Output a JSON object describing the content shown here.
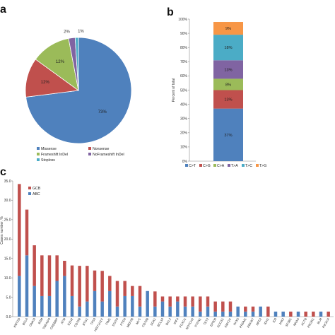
{
  "panels": {
    "a": "a",
    "b": "b",
    "c": "c"
  },
  "chart_data": [
    {
      "panel": "a",
      "type": "pie",
      "slices": [
        {
          "name": "Missense",
          "value": 73,
          "label": "73%",
          "color": "#4f81bd"
        },
        {
          "name": "Nonsense",
          "value": 12,
          "label": "12%",
          "color": "#c0504d"
        },
        {
          "name": "Frameshift InDel",
          "value": 12,
          "label": "12%",
          "color": "#9bbb59"
        },
        {
          "name": "NoFrameshift InDel",
          "value": 2,
          "label": "2%",
          "color": "#8064a2"
        },
        {
          "name": "Stoploss",
          "value": 1,
          "label": "1%",
          "color": "#4bacc6"
        }
      ],
      "legend": [
        "Missense",
        "Nonsense",
        "Frameshift InDel",
        "NoFrameshift InDel",
        "Stoploss"
      ],
      "legend_position": "bottom"
    },
    {
      "panel": "b",
      "type": "bar",
      "stacked": true,
      "ylabel": "Percent of total",
      "yticks": [
        "0%",
        "10%",
        "20%",
        "30%",
        "40%",
        "50%",
        "60%",
        "70%",
        "80%",
        "90%",
        "100%"
      ],
      "ylim": [
        0,
        100
      ],
      "series": [
        {
          "name": "C>T",
          "value": 37,
          "label": "37%",
          "color": "#4f81bd"
        },
        {
          "name": "C>G",
          "value": 13,
          "label": "13%",
          "color": "#c0504d"
        },
        {
          "name": "C>A",
          "value": 8,
          "label": "8%",
          "color": "#9bbb59"
        },
        {
          "name": "T>A",
          "value": 13,
          "label": "13%",
          "color": "#8064a2"
        },
        {
          "name": "T>C",
          "value": 18,
          "label": "18%",
          "color": "#4bacc6"
        },
        {
          "name": "T>G",
          "value": 9,
          "label": "9%",
          "color": "#f79646"
        }
      ],
      "legend_position": "bottom"
    },
    {
      "panel": "c",
      "type": "bar",
      "stacked": true,
      "ylabel": "Cases number, %",
      "ylim": [
        0,
        35
      ],
      "yticks": [
        "0.0",
        "5.0",
        "10.0",
        "15.0",
        "20.0",
        "25.0",
        "30.0",
        "35.0"
      ],
      "legend": [
        "GCB",
        "ABC"
      ],
      "legend_position": "top-left",
      "categories": [
        "KMT2D",
        "BCL6",
        "GNAI3",
        "B2M",
        "TNFAIP3",
        "CREBBP",
        "ATM",
        "EZH2",
        "CD79B",
        "BTG1",
        "TP53",
        "HIST1H1C",
        "PIM1",
        "STAT6",
        "PTEN",
        "MEF2B",
        "MYC",
        "CD70B",
        "SGK1",
        "BCL10",
        "BCL2",
        "IRF4",
        "FOXO1",
        "NOTCH2",
        "PTPN1",
        "TET2",
        "EP300",
        "SOCS1",
        "KMT2C",
        "PAX5",
        "PRDM1",
        "FBXW7",
        "NFE2",
        "IDH1",
        "ID3",
        "JAK2",
        "SF3B1",
        "NRAS",
        "ACTB",
        "PIK3R1",
        "BLM",
        "PIK3CA"
      ],
      "series": [
        {
          "name": "ABC",
          "color": "#4f81bd",
          "values": [
            10.5,
            15.8,
            7.9,
            5.3,
            5.3,
            9.2,
            10.5,
            5.3,
            2.6,
            3.9,
            6.6,
            3.9,
            6.6,
            2.6,
            5.3,
            5.3,
            2.6,
            6.6,
            2.6,
            3.9,
            2.6,
            3.9,
            2.6,
            2.6,
            1.3,
            2.6,
            1.3,
            1.3,
            1.3,
            2.6,
            1.3,
            1.3,
            2.6,
            0.0,
            1.3,
            1.3,
            0.0,
            1.3,
            0.0,
            0.0,
            1.3,
            0.0
          ]
        },
        {
          "name": "GCB",
          "color": "#c0504d",
          "values": [
            23.7,
            11.8,
            10.5,
            10.5,
            10.5,
            6.6,
            3.9,
            7.9,
            10.5,
            9.2,
            5.3,
            7.9,
            3.9,
            6.6,
            3.9,
            2.6,
            5.3,
            0.0,
            3.9,
            1.3,
            2.6,
            1.3,
            2.6,
            2.6,
            3.9,
            2.6,
            2.6,
            2.6,
            2.6,
            0.0,
            1.3,
            1.3,
            0.0,
            2.6,
            0.0,
            0.0,
            1.3,
            0.0,
            1.3,
            1.3,
            0.0,
            1.3
          ]
        }
      ]
    }
  ]
}
